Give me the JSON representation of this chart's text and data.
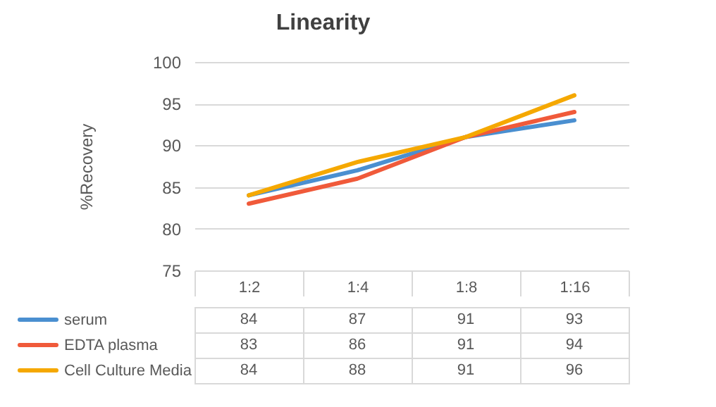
{
  "chart_data": {
    "type": "line",
    "title": "Linearity",
    "ylabel": "%Recovery",
    "categories": [
      "1:2",
      "1:4",
      "1:8",
      "1:16"
    ],
    "series": [
      {
        "name": "serum",
        "color": "#4a8fd0",
        "values": [
          84,
          87,
          91,
          93
        ]
      },
      {
        "name": "EDTA plasma",
        "color": "#f05a3a",
        "values": [
          83,
          86,
          91,
          94
        ]
      },
      {
        "name": "Cell Culture Media",
        "color": "#f5a800",
        "values": [
          84,
          88,
          91,
          96
        ]
      }
    ],
    "ylim": [
      75,
      100
    ],
    "yticks": [
      75,
      80,
      85,
      90,
      95,
      100
    ],
    "grid": "y",
    "data_labels": true,
    "legend": "bottom left"
  }
}
